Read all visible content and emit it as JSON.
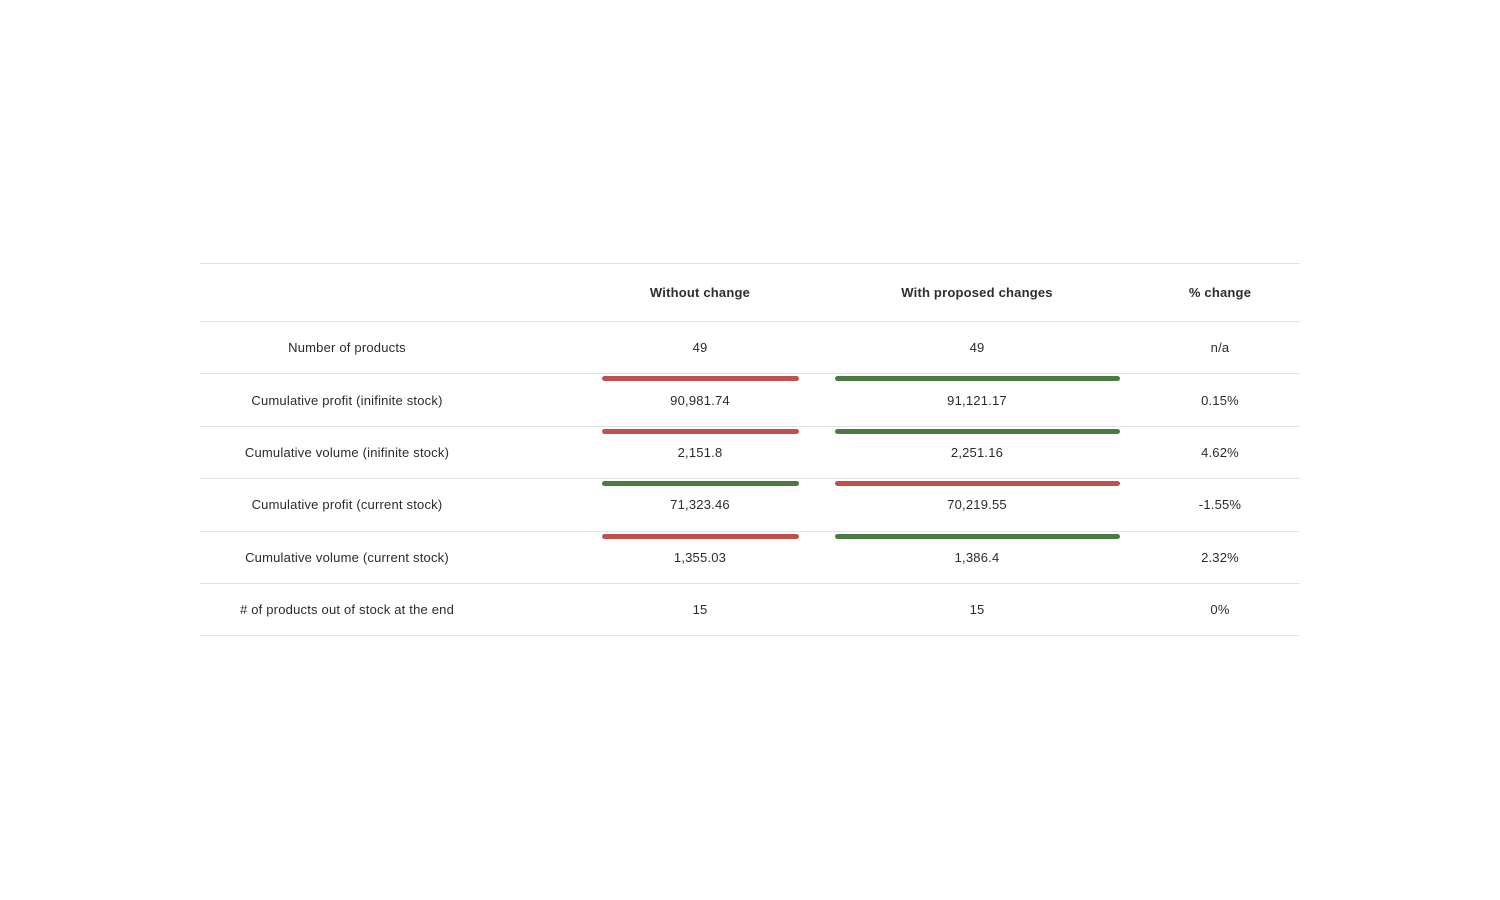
{
  "table": {
    "headers": [
      "",
      "Without change",
      "With proposed changes",
      "% change"
    ],
    "rows": [
      {
        "label": "Number of products",
        "without": "49",
        "with": "49",
        "change": "n/a",
        "without_bar": null,
        "with_bar": null
      },
      {
        "label": "Cumulative profit (inifinite stock)",
        "without": "90,981.74",
        "with": "91,121.17",
        "change": "0.15%",
        "without_bar": "red",
        "with_bar": "green"
      },
      {
        "label": "Cumulative volume (inifinite stock)",
        "without": "2,151.8",
        "with": "2,251.16",
        "change": "4.62%",
        "without_bar": "red",
        "with_bar": "green"
      },
      {
        "label": "Cumulative profit (current stock)",
        "without": "71,323.46",
        "with": "70,219.55",
        "change": "-1.55%",
        "without_bar": "green",
        "with_bar": "red"
      },
      {
        "label": "Cumulative volume (current stock)",
        "without": "1,355.03",
        "with": "1,386.4",
        "change": "2.32%",
        "without_bar": "red",
        "with_bar": "green"
      },
      {
        "label": "# of products out of stock at the end",
        "without": "15",
        "with": "15",
        "change": "0%",
        "without_bar": null,
        "with_bar": null
      }
    ]
  },
  "colors": {
    "worse": "#c0504d",
    "better": "#4a7a3f"
  }
}
